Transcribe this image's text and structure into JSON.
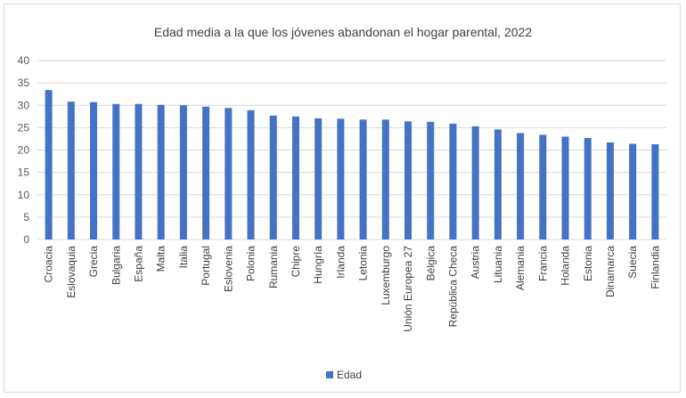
{
  "chart_data": {
    "type": "bar",
    "title": "Edad media a la que los jóvenes abandonan el hogar parental, 2022",
    "xlabel": "",
    "ylabel": "",
    "ylim": [
      0,
      40
    ],
    "yticks": [
      0,
      5,
      10,
      15,
      20,
      25,
      30,
      35,
      40
    ],
    "grid": true,
    "legend_position": "bottom",
    "categories": [
      "Croacia",
      "Eslovaquia",
      "Grecia",
      "Bulgaria",
      "España",
      "Malta",
      "Italia",
      "Portugal",
      "Eslovenia",
      "Polonia",
      "Rumania",
      "Chipre",
      "Hungría",
      "Irlanda",
      "Letonia",
      "Luxemburgo",
      "Unión Europea 27",
      "Bélgica",
      "República Checa",
      "Austria",
      "Lituania",
      "Alemania",
      "Francia",
      "Holanda",
      "Estonia",
      "Dinamarca",
      "Suecia",
      "Finlandia"
    ],
    "series": [
      {
        "name": "Edad",
        "color": "#4472c4",
        "values": [
          33.4,
          30.8,
          30.7,
          30.3,
          30.3,
          30.1,
          30.0,
          29.7,
          29.4,
          28.9,
          27.7,
          27.5,
          27.1,
          27.0,
          26.8,
          26.8,
          26.4,
          26.3,
          25.9,
          25.3,
          24.6,
          23.8,
          23.4,
          23.0,
          22.7,
          21.7,
          21.4,
          21.3
        ]
      }
    ]
  },
  "colors": {
    "bar": "#4472c4",
    "grid": "#d9d9d9",
    "axis_text": "#595959",
    "title_text": "#404040"
  }
}
